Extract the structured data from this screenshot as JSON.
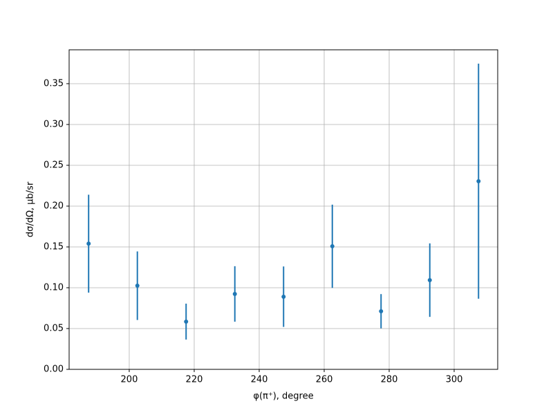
{
  "chart_data": {
    "type": "errorbar",
    "xlabel": "φ(π⁺), degree",
    "ylabel": "dσ/dΩ, μb/sr",
    "x": [
      187.5,
      202.5,
      217.5,
      232.5,
      247.5,
      262.5,
      277.5,
      292.5,
      307.5
    ],
    "series": [
      {
        "color": "#1f77b4",
        "values": [
          0.154,
          0.1025,
          0.0585,
          0.0924,
          0.089,
          0.1508,
          0.0712,
          0.1093,
          0.2305
        ],
        "errors": [
          0.06,
          0.042,
          0.022,
          0.034,
          0.037,
          0.051,
          0.021,
          0.045,
          0.144
        ]
      }
    ],
    "xlim": [
      181.5,
      313.4
    ],
    "ylim": [
      0,
      0.3915
    ],
    "xticks": [
      200,
      220,
      240,
      260,
      280,
      300
    ],
    "yticks": [
      {
        "value": 0,
        "label": "0.00"
      },
      {
        "value": 0.05,
        "label": "0.05"
      },
      {
        "value": 0.1,
        "label": "0.10"
      },
      {
        "value": 0.15,
        "label": "0.15"
      },
      {
        "value": 0.2,
        "label": "0.20"
      },
      {
        "value": 0.25,
        "label": "0.25"
      },
      {
        "value": 0.3,
        "label": "0.30"
      },
      {
        "value": 0.35,
        "label": "0.35"
      }
    ],
    "grid": true
  }
}
